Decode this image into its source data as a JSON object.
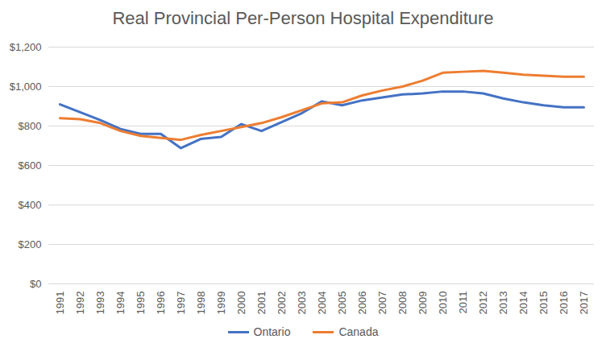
{
  "chart_data": {
    "type": "line",
    "title": "Real Provincial Per-Person Hospital Expenditure",
    "categories": [
      "1991",
      "1992",
      "1993",
      "1994",
      "1995",
      "1996",
      "1997",
      "1998",
      "1999",
      "2000",
      "2001",
      "2002",
      "2003",
      "2004",
      "2005",
      "2006",
      "2007",
      "2008",
      "2009",
      "2010",
      "2011",
      "2012",
      "2013",
      "2014",
      "2015",
      "2016",
      "2017"
    ],
    "series": [
      {
        "name": "Ontario",
        "color": "#4472c4",
        "values": [
          910,
          870,
          830,
          785,
          760,
          760,
          688,
          735,
          745,
          810,
          775,
          820,
          865,
          925,
          905,
          930,
          945,
          960,
          965,
          975,
          975,
          965,
          940,
          920,
          905,
          895,
          895
        ]
      },
      {
        "name": "Canada",
        "color": "#ed7d31",
        "values": [
          840,
          835,
          815,
          775,
          750,
          740,
          730,
          755,
          775,
          795,
          815,
          845,
          880,
          915,
          920,
          955,
          980,
          1000,
          1030,
          1070,
          1075,
          1080,
          1070,
          1060,
          1055,
          1050,
          1050
        ]
      }
    ],
    "ylim": [
      0,
      1200
    ],
    "yticks": [
      {
        "value": 0,
        "label": "$0"
      },
      {
        "value": 200,
        "label": "$200"
      },
      {
        "value": 400,
        "label": "$400"
      },
      {
        "value": 600,
        "label": "$600"
      },
      {
        "value": 800,
        "label": "$800"
      },
      {
        "value": 1000,
        "label": "$1,000"
      },
      {
        "value": 1200,
        "label": "$1,200"
      }
    ],
    "grid": true,
    "legend": "bottom"
  }
}
